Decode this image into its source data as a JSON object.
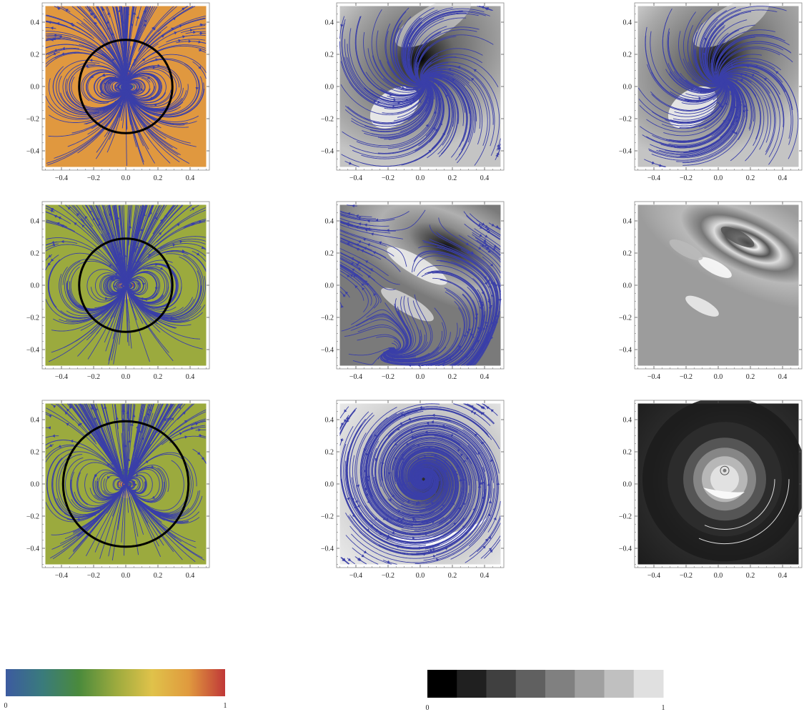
{
  "chart_data": [
    {
      "type": "heatmap",
      "panel": "row1-col1",
      "style": "rainbow",
      "background": "#E0983F",
      "circle": true,
      "circle_radius": 0.29,
      "streamlines": true,
      "xlim": [
        -0.5,
        0.5
      ],
      "ylim": [
        -0.5,
        0.5
      ],
      "xticks": [
        "−0.4",
        "−0.2",
        "0.0",
        "0.2",
        "0.4"
      ],
      "yticks": [
        "−0.4",
        "−0.2",
        "0.0",
        "0.2",
        "0.4"
      ]
    },
    {
      "type": "heatmap",
      "panel": "row1-col2",
      "style": "grayscale",
      "streamlines": true,
      "xlim": [
        -0.5,
        0.5
      ],
      "ylim": [
        -0.5,
        0.5
      ],
      "xticks": [
        "−0.4",
        "−0.2",
        "0.0",
        "0.2",
        "0.4"
      ],
      "yticks": [
        "−0.4",
        "−0.2",
        "0.0",
        "0.2",
        "0.4"
      ]
    },
    {
      "type": "heatmap",
      "panel": "row1-col3",
      "style": "grayscale",
      "streamlines": true,
      "xlim": [
        -0.5,
        0.5
      ],
      "ylim": [
        -0.5,
        0.5
      ],
      "xticks": [
        "−0.4",
        "−0.2",
        "0.0",
        "0.2",
        "0.4"
      ],
      "yticks": [
        "−0.4",
        "−0.2",
        "0.0",
        "0.2",
        "0.4"
      ]
    },
    {
      "type": "heatmap",
      "panel": "row2-col1",
      "style": "rainbow",
      "background": "#9BAA3E",
      "circle": true,
      "circle_radius": 0.29,
      "streamlines": true,
      "xlim": [
        -0.5,
        0.5
      ],
      "ylim": [
        -0.5,
        0.5
      ],
      "xticks": [
        "−0.4",
        "−0.2",
        "0.0",
        "0.2",
        "0.4"
      ],
      "yticks": [
        "−0.4",
        "−0.2",
        "0.0",
        "0.2",
        "0.4"
      ]
    },
    {
      "type": "heatmap",
      "panel": "row2-col2",
      "style": "grayscale",
      "streamlines": true,
      "xlim": [
        -0.5,
        0.5
      ],
      "ylim": [
        -0.5,
        0.5
      ],
      "xticks": [
        "−0.4",
        "−0.2",
        "0.0",
        "0.2",
        "0.4"
      ],
      "yticks": [
        "−0.4",
        "−0.2",
        "0.0",
        "0.2",
        "0.4"
      ]
    },
    {
      "type": "heatmap",
      "panel": "row2-col3",
      "style": "grayscale",
      "streamlines": false,
      "xlim": [
        -0.5,
        0.5
      ],
      "ylim": [
        -0.5,
        0.5
      ],
      "xticks": [
        "−0.4",
        "−0.2",
        "0.0",
        "0.2",
        "0.4"
      ],
      "yticks": [
        "−0.4",
        "−0.2",
        "0.0",
        "0.2",
        "0.4"
      ]
    },
    {
      "type": "heatmap",
      "panel": "row3-col1",
      "style": "rainbow",
      "background": "#9BAA3E",
      "circle": true,
      "circle_radius": 0.39,
      "streamlines": true,
      "xlim": [
        -0.5,
        0.5
      ],
      "ylim": [
        -0.5,
        0.5
      ],
      "xticks": [
        "−0.4",
        "−0.2",
        "0.0",
        "0.2",
        "0.4"
      ],
      "yticks": [
        "−0.4",
        "−0.2",
        "0.0",
        "0.2",
        "0.4"
      ]
    },
    {
      "type": "heatmap",
      "panel": "row3-col2",
      "style": "grayscale",
      "streamlines": true,
      "xlim": [
        -0.5,
        0.5
      ],
      "ylim": [
        -0.5,
        0.5
      ],
      "xticks": [
        "−0.4",
        "−0.2",
        "0.0",
        "0.2",
        "0.4"
      ],
      "yticks": [
        "−0.4",
        "−0.2",
        "0.0",
        "0.2",
        "0.4"
      ]
    },
    {
      "type": "heatmap",
      "panel": "row3-col3",
      "style": "grayscale",
      "streamlines": false,
      "xlim": [
        -0.5,
        0.5
      ],
      "ylim": [
        -0.5,
        0.5
      ],
      "xticks": [
        "−0.4",
        "−0.2",
        "0.0",
        "0.2",
        "0.4"
      ],
      "yticks": [
        "−0.4",
        "−0.2",
        "0.0",
        "0.2",
        "0.4"
      ]
    }
  ],
  "colorbars": [
    {
      "name": "rainbow",
      "min_label": "0",
      "max_label": "1",
      "stops": [
        "#3C5BA0",
        "#3A7B7C",
        "#4A8A3C",
        "#9BAA3E",
        "#E0C24A",
        "#E09A3E",
        "#C03838"
      ]
    },
    {
      "name": "grayscale",
      "min_label": "0",
      "max_label": "1",
      "levels": [
        "#000000",
        "#202020",
        "#404040",
        "#606060",
        "#808080",
        "#A0A0A0",
        "#C0C0C0",
        "#E0E0E0"
      ]
    }
  ],
  "colors": {
    "streamline": "#3A3FA8",
    "circle": "#000000",
    "frame": "#888888"
  }
}
